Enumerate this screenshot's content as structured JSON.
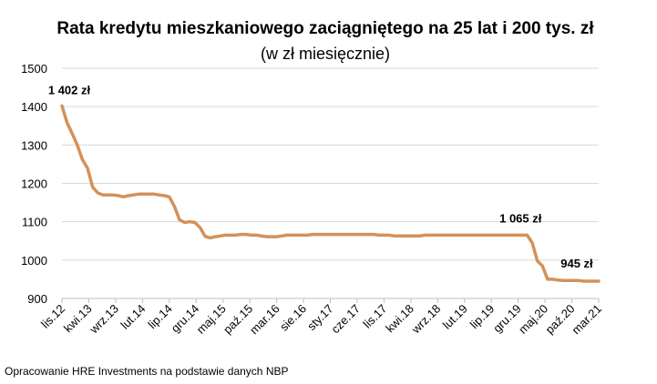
{
  "chart_data": {
    "type": "line",
    "title": "Rata kredytu mieszkaniowego zaciągniętego na 25 lat i 200 tys. zł",
    "subtitle": "(w zł miesięcznie)",
    "xlabel": "",
    "ylabel": "",
    "ylim": [
      900,
      1500
    ],
    "yticks": [
      900,
      1000,
      1100,
      1200,
      1300,
      1400,
      1500
    ],
    "grid": true,
    "legend": "none",
    "line_color": "#D4915A",
    "x_tick_labels": [
      "lis.12",
      "kwi.13",
      "wrz.13",
      "lut.14",
      "lip.14",
      "gru.14",
      "maj.15",
      "paź.15",
      "mar.16",
      "sie.16",
      "sty.17",
      "cze.17",
      "lis.17",
      "kwi.18",
      "wrz.18",
      "lut.19",
      "lip.19",
      "gru.19",
      "maj.20",
      "paź.20",
      "mar.21"
    ],
    "series": [
      {
        "values": [
          1402,
          1358,
          1330,
          1300,
          1262,
          1240,
          1190,
          1175,
          1170,
          1170,
          1170,
          1168,
          1165,
          1168,
          1170,
          1172,
          1172,
          1172,
          1172,
          1170,
          1168,
          1165,
          1140,
          1105,
          1098,
          1100,
          1098,
          1085,
          1062,
          1058,
          1061,
          1063,
          1065,
          1065,
          1065,
          1067,
          1067,
          1065,
          1065,
          1063,
          1061,
          1061,
          1061,
          1063,
          1065,
          1065,
          1065,
          1065,
          1065,
          1067,
          1067,
          1067,
          1067,
          1067,
          1067,
          1067,
          1067,
          1067,
          1067,
          1067,
          1067,
          1067,
          1065,
          1065,
          1065,
          1063,
          1063,
          1063,
          1063,
          1063,
          1063,
          1065,
          1065,
          1065,
          1065,
          1065,
          1065,
          1065,
          1065,
          1065,
          1065,
          1065,
          1065,
          1065,
          1065,
          1065,
          1065,
          1065,
          1065,
          1065,
          1065,
          1065,
          1045,
          998,
          985,
          950,
          950,
          948,
          947,
          947,
          947,
          947,
          945,
          945,
          945,
          945
        ]
      }
    ],
    "annotations": [
      {
        "text": "1 402 zł",
        "index": 0
      },
      {
        "text": "1 065 zł",
        "index": 89
      },
      {
        "text": "945 zł",
        "index": 100
      }
    ]
  },
  "footer": {
    "source": "Opracowanie HRE Investments na podstawie danych NBP"
  }
}
